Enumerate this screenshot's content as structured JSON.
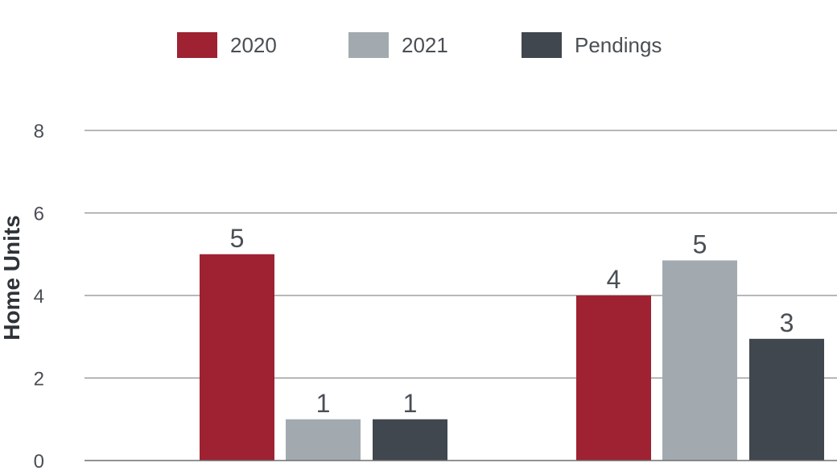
{
  "chart_data": {
    "type": "bar",
    "title": "",
    "xlabel": "",
    "ylabel": "Home Units",
    "ylim": [
      0,
      8
    ],
    "yticks": [
      0,
      2,
      4,
      6,
      8
    ],
    "grid": true,
    "legend_position": "top-center",
    "categories": [
      "",
      ""
    ],
    "series": [
      {
        "name": "2020",
        "color": "#9e2232",
        "values": [
          5,
          4
        ],
        "labels": [
          "5",
          "4"
        ]
      },
      {
        "name": "2021",
        "color": "#a2aab0",
        "values": [
          1,
          4.85
        ],
        "labels": [
          "1",
          "5"
        ]
      },
      {
        "name": "Pendings",
        "color": "#41474e",
        "values": [
          1,
          2.95
        ],
        "labels": [
          "1",
          "3"
        ]
      }
    ]
  }
}
